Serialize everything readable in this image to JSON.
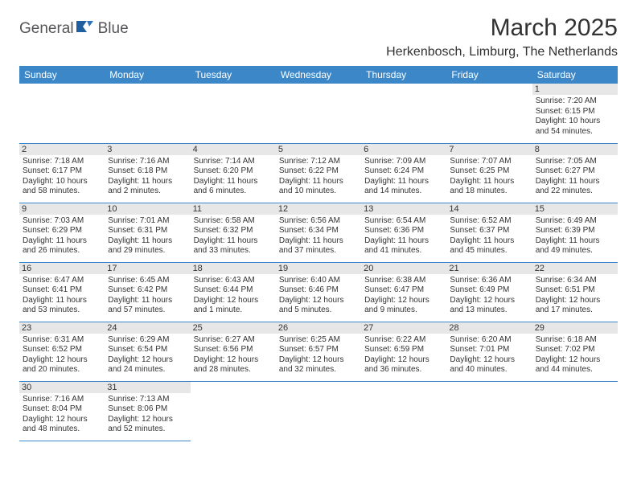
{
  "brand": {
    "name_part1": "General",
    "name_part2": "Blue"
  },
  "title": "March 2025",
  "location": "Herkenbosch, Limburg, The Netherlands",
  "colors": {
    "header_bg": "#3b87c8",
    "header_text": "#ffffff",
    "daynum_bg": "#e7e7e7",
    "row_divider": "#3b87c8",
    "logo_text": "#555558",
    "logo_icon": "#1f5fa0"
  },
  "day_headers": [
    "Sunday",
    "Monday",
    "Tuesday",
    "Wednesday",
    "Thursday",
    "Friday",
    "Saturday"
  ],
  "weeks": [
    [
      null,
      null,
      null,
      null,
      null,
      null,
      {
        "n": "1",
        "sr": "7:20 AM",
        "ss": "6:15 PM",
        "dl": "10 hours and 54 minutes."
      }
    ],
    [
      {
        "n": "2",
        "sr": "7:18 AM",
        "ss": "6:17 PM",
        "dl": "10 hours and 58 minutes."
      },
      {
        "n": "3",
        "sr": "7:16 AM",
        "ss": "6:18 PM",
        "dl": "11 hours and 2 minutes."
      },
      {
        "n": "4",
        "sr": "7:14 AM",
        "ss": "6:20 PM",
        "dl": "11 hours and 6 minutes."
      },
      {
        "n": "5",
        "sr": "7:12 AM",
        "ss": "6:22 PM",
        "dl": "11 hours and 10 minutes."
      },
      {
        "n": "6",
        "sr": "7:09 AM",
        "ss": "6:24 PM",
        "dl": "11 hours and 14 minutes."
      },
      {
        "n": "7",
        "sr": "7:07 AM",
        "ss": "6:25 PM",
        "dl": "11 hours and 18 minutes."
      },
      {
        "n": "8",
        "sr": "7:05 AM",
        "ss": "6:27 PM",
        "dl": "11 hours and 22 minutes."
      }
    ],
    [
      {
        "n": "9",
        "sr": "7:03 AM",
        "ss": "6:29 PM",
        "dl": "11 hours and 26 minutes."
      },
      {
        "n": "10",
        "sr": "7:01 AM",
        "ss": "6:31 PM",
        "dl": "11 hours and 29 minutes."
      },
      {
        "n": "11",
        "sr": "6:58 AM",
        "ss": "6:32 PM",
        "dl": "11 hours and 33 minutes."
      },
      {
        "n": "12",
        "sr": "6:56 AM",
        "ss": "6:34 PM",
        "dl": "11 hours and 37 minutes."
      },
      {
        "n": "13",
        "sr": "6:54 AM",
        "ss": "6:36 PM",
        "dl": "11 hours and 41 minutes."
      },
      {
        "n": "14",
        "sr": "6:52 AM",
        "ss": "6:37 PM",
        "dl": "11 hours and 45 minutes."
      },
      {
        "n": "15",
        "sr": "6:49 AM",
        "ss": "6:39 PM",
        "dl": "11 hours and 49 minutes."
      }
    ],
    [
      {
        "n": "16",
        "sr": "6:47 AM",
        "ss": "6:41 PM",
        "dl": "11 hours and 53 minutes."
      },
      {
        "n": "17",
        "sr": "6:45 AM",
        "ss": "6:42 PM",
        "dl": "11 hours and 57 minutes."
      },
      {
        "n": "18",
        "sr": "6:43 AM",
        "ss": "6:44 PM",
        "dl": "12 hours and 1 minute."
      },
      {
        "n": "19",
        "sr": "6:40 AM",
        "ss": "6:46 PM",
        "dl": "12 hours and 5 minutes."
      },
      {
        "n": "20",
        "sr": "6:38 AM",
        "ss": "6:47 PM",
        "dl": "12 hours and 9 minutes."
      },
      {
        "n": "21",
        "sr": "6:36 AM",
        "ss": "6:49 PM",
        "dl": "12 hours and 13 minutes."
      },
      {
        "n": "22",
        "sr": "6:34 AM",
        "ss": "6:51 PM",
        "dl": "12 hours and 17 minutes."
      }
    ],
    [
      {
        "n": "23",
        "sr": "6:31 AM",
        "ss": "6:52 PM",
        "dl": "12 hours and 20 minutes."
      },
      {
        "n": "24",
        "sr": "6:29 AM",
        "ss": "6:54 PM",
        "dl": "12 hours and 24 minutes."
      },
      {
        "n": "25",
        "sr": "6:27 AM",
        "ss": "6:56 PM",
        "dl": "12 hours and 28 minutes."
      },
      {
        "n": "26",
        "sr": "6:25 AM",
        "ss": "6:57 PM",
        "dl": "12 hours and 32 minutes."
      },
      {
        "n": "27",
        "sr": "6:22 AM",
        "ss": "6:59 PM",
        "dl": "12 hours and 36 minutes."
      },
      {
        "n": "28",
        "sr": "6:20 AM",
        "ss": "7:01 PM",
        "dl": "12 hours and 40 minutes."
      },
      {
        "n": "29",
        "sr": "6:18 AM",
        "ss": "7:02 PM",
        "dl": "12 hours and 44 minutes."
      }
    ],
    [
      {
        "n": "30",
        "sr": "7:16 AM",
        "ss": "8:04 PM",
        "dl": "12 hours and 48 minutes."
      },
      {
        "n": "31",
        "sr": "7:13 AM",
        "ss": "8:06 PM",
        "dl": "12 hours and 52 minutes."
      },
      null,
      null,
      null,
      null,
      null
    ]
  ],
  "labels": {
    "sunrise": "Sunrise:",
    "sunset": "Sunset:",
    "daylight": "Daylight:"
  }
}
